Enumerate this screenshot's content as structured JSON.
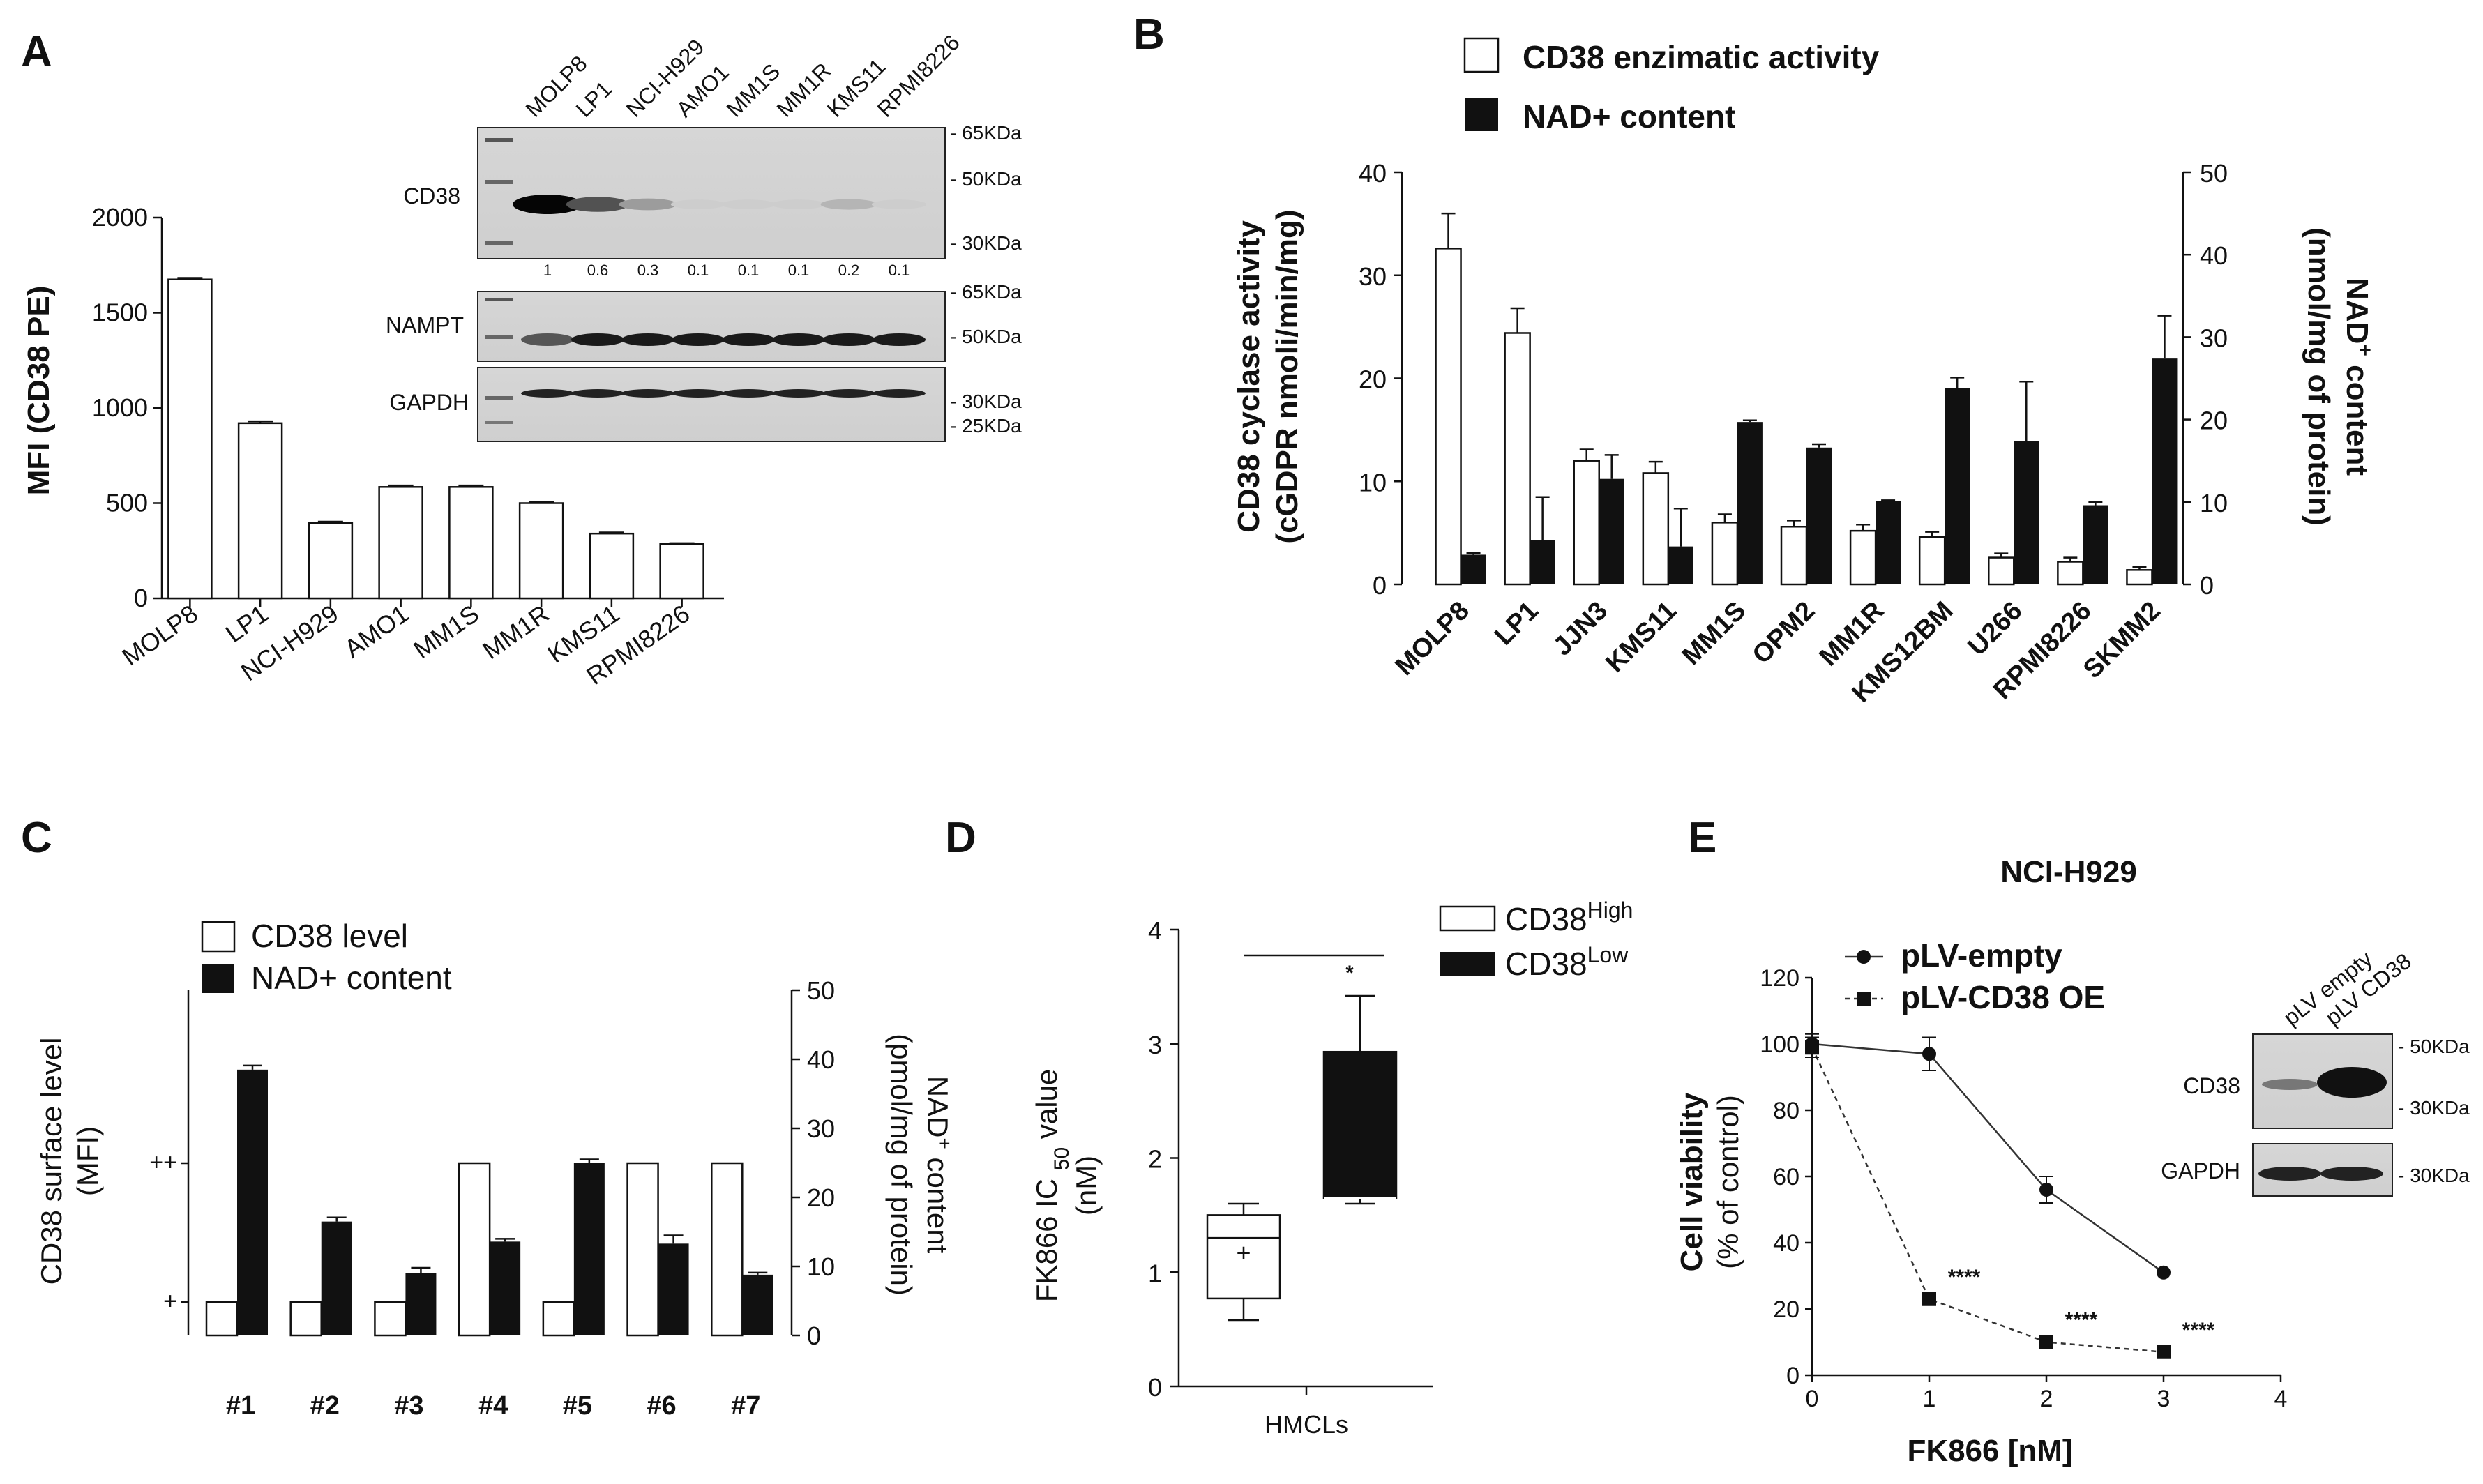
{
  "figure": {
    "panel_letters": [
      "A",
      "B",
      "C",
      "D",
      "E"
    ]
  },
  "chart_data": [
    {
      "panel": "A",
      "type": "bar",
      "ylabel": "MFI (CD38 PE)",
      "ylim": [
        0,
        2000
      ],
      "yticks": [
        0,
        500,
        1000,
        1500,
        2000
      ],
      "categories": [
        "MOLP8",
        "LP1",
        "NCI-H929",
        "AMO1",
        "MM1S",
        "MM1R",
        "KMS11",
        "RPMI8226"
      ],
      "values": [
        1675,
        920,
        395,
        585,
        585,
        500,
        340,
        285
      ],
      "errors": [
        8,
        10,
        8,
        8,
        8,
        6,
        6,
        5
      ],
      "blot": {
        "lanes": [
          "MOLP8",
          "LP1",
          "NCI-H929",
          "AMO1",
          "MM1S",
          "MM1R",
          "KMS11",
          "RPMI8226"
        ],
        "proteins": [
          "CD38",
          "NAMPT",
          "GAPDH"
        ],
        "quant": [
          "1",
          "0.6",
          "0.3",
          "0.1",
          "0.1",
          "0.1",
          "0.2",
          "0.1"
        ],
        "markers_cd38": [
          "65KDa",
          "50KDa",
          "30KDa"
        ],
        "markers_nampt": [
          "65KDa",
          "50KDa"
        ],
        "markers_gapdh": [
          "30KDa",
          "25KDa"
        ]
      }
    },
    {
      "panel": "B",
      "type": "bar",
      "legend": [
        "CD38 enzimatic activity",
        "NAD+ content"
      ],
      "ylabel_left": [
        "CD38 cyclase activity",
        "(cGDPR nmoli/min/mg)"
      ],
      "ylabel_right_main": "NAD",
      "ylabel_right_sup": "+",
      "ylabel_right_suffix": " content",
      "ylabel_right_unit": "(nmol/mg of protein)",
      "ylim_left": [
        0,
        40
      ],
      "yticks_left": [
        0,
        10,
        20,
        30,
        40
      ],
      "ylim_right": [
        0,
        50
      ],
      "yticks_right": [
        0,
        10,
        20,
        30,
        40,
        50
      ],
      "categories": [
        "MOLP8",
        "LP1",
        "JJN3",
        "KMS11",
        "MM1S",
        "OPM2",
        "MM1R",
        "KMS12BM",
        "U266",
        "RPMI8226",
        "SKMM2"
      ],
      "series": [
        {
          "name": "CD38 enzimatic activity",
          "axis": "left",
          "values": [
            32.6,
            24.4,
            12.0,
            10.8,
            6.0,
            5.6,
            5.2,
            4.6,
            2.6,
            2.2,
            1.4
          ],
          "errors": [
            3.4,
            2.4,
            1.1,
            1.1,
            0.8,
            0.6,
            0.6,
            0.5,
            0.4,
            0.4,
            0.3
          ]
        },
        {
          "name": "NAD+ content",
          "axis": "right",
          "values": [
            3.6,
            5.4,
            12.8,
            4.6,
            19.7,
            16.6,
            10.1,
            23.8,
            17.4,
            9.6,
            27.4
          ],
          "errors": [
            0.2,
            5.2,
            2.9,
            4.6,
            0.2,
            0.4,
            0.1,
            1.3,
            7.2,
            0.4,
            5.2
          ]
        }
      ]
    },
    {
      "panel": "C",
      "type": "bar",
      "legend": [
        "CD38 level",
        "NAD+ content"
      ],
      "ylabel_left": [
        "CD38 surface level",
        "(MFI)"
      ],
      "ylabel_right_main": "NAD",
      "ylabel_right_sup": "+",
      "ylabel_right_suffix": " content",
      "ylabel_right_unit": "(pmol/mg of protein)",
      "yticks_left_labels": [
        "+",
        "++"
      ],
      "ylim_right": [
        0,
        50
      ],
      "yticks_right": [
        0,
        10,
        20,
        30,
        40,
        50
      ],
      "categories": [
        "#1",
        "#2",
        "#3",
        "#4",
        "#5",
        "#6",
        "#7"
      ],
      "series": [
        {
          "name": "CD38 level",
          "values": [
            "+",
            "+",
            "+",
            "++",
            "+",
            "++",
            "++"
          ]
        },
        {
          "name": "NAD+ content",
          "values": [
            38.5,
            16.5,
            9.0,
            13.6,
            25.0,
            13.3,
            8.8
          ],
          "errors": [
            0.6,
            0.6,
            0.8,
            0.4,
            0.5,
            1.2,
            0.3
          ]
        }
      ]
    },
    {
      "panel": "D",
      "type": "box",
      "ylabel_main": "FK866 IC ",
      "ylabel_sub": "50",
      "ylabel_tail": " value",
      "ylabel_unit": "(nM)",
      "xlabel": "HMCLs",
      "ylim": [
        0,
        4
      ],
      "yticks": [
        0,
        1,
        2,
        3,
        4
      ],
      "legend": [
        {
          "main": "CD38",
          "sup": "High"
        },
        {
          "main": "CD38",
          "sup": "Low"
        }
      ],
      "significance": "*",
      "boxes": [
        {
          "group": "CD38 High",
          "min": 0.58,
          "q1": 0.77,
          "median": 1.3,
          "q3": 1.5,
          "max": 1.6,
          "mean": 1.17
        },
        {
          "group": "CD38 Low",
          "min": 1.6,
          "q1": 1.65,
          "median": 1.65,
          "q3": 2.93,
          "max": 3.42
        }
      ]
    },
    {
      "panel": "E",
      "type": "line",
      "title": "NCI-H929",
      "xlabel": "FK866 [nM]",
      "ylabel": [
        "Cell viability",
        "(% of control)"
      ],
      "xlim": [
        0,
        4
      ],
      "xticks": [
        0,
        1,
        2,
        3,
        4
      ],
      "ylim": [
        0,
        120
      ],
      "yticks": [
        0,
        20,
        40,
        60,
        80,
        100,
        120
      ],
      "series": [
        {
          "name": "pLV-empty",
          "x": [
            0,
            1,
            2,
            3
          ],
          "y": [
            100,
            97,
            56,
            31
          ],
          "errors": [
            3,
            5,
            4,
            0.5
          ],
          "marker": "circle"
        },
        {
          "name": "pLV-CD38 OE",
          "x": [
            0,
            1,
            2,
            3
          ],
          "y": [
            99,
            23,
            10,
            7
          ],
          "errors": [
            3,
            1,
            0.5,
            0.5
          ],
          "marker": "square"
        }
      ],
      "annotations": [
        "****",
        "****",
        "****"
      ],
      "blot": {
        "lanes": [
          "pLV empty",
          "pLV CD38"
        ],
        "proteins": [
          "CD38",
          "GAPDH"
        ],
        "markers_cd38": [
          "50KDa",
          "30KDa"
        ],
        "markers_gapdh": [
          "30KDa"
        ]
      }
    }
  ]
}
